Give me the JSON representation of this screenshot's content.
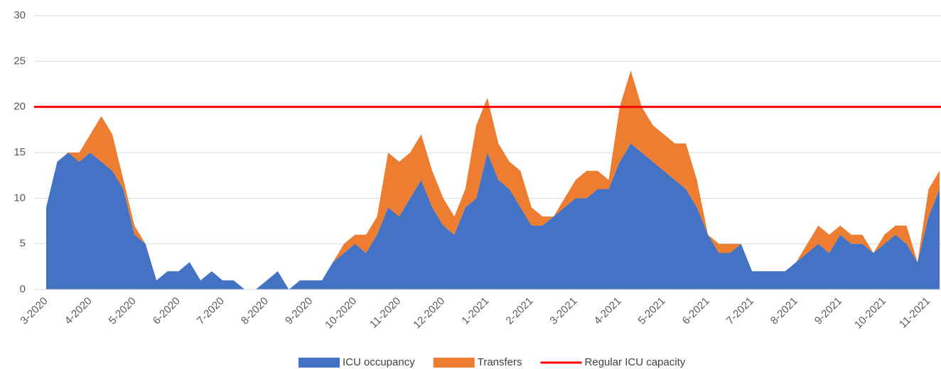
{
  "chart_data": {
    "type": "stacked-area",
    "categories": [
      "3-2020",
      null,
      null,
      null,
      "4-2020",
      null,
      null,
      null,
      "5-2020",
      null,
      null,
      null,
      "6-2020",
      null,
      null,
      null,
      "7-2020",
      null,
      null,
      null,
      "8-2020",
      null,
      null,
      null,
      "9-2020",
      null,
      null,
      null,
      "10-2020",
      null,
      null,
      null,
      "11-2020",
      null,
      null,
      null,
      "12-2020",
      null,
      null,
      null,
      "1-2021",
      null,
      null,
      null,
      "2-2021",
      null,
      null,
      null,
      "3-2021",
      null,
      null,
      null,
      "4-2021",
      null,
      null,
      null,
      "5-2021",
      null,
      null,
      null,
      "6-2021",
      null,
      null,
      null,
      "7-2021",
      null,
      null,
      null,
      "8-2021",
      null,
      null,
      null,
      "9-2021",
      null,
      null,
      null,
      "10-2021",
      null,
      null,
      null,
      "11-2021",
      null
    ],
    "series": [
      {
        "name": "ICU occupancy",
        "color": "#4472c4",
        "values": [
          9,
          14,
          15,
          14,
          15,
          14,
          13,
          11,
          6,
          5,
          1,
          2,
          2,
          3,
          1,
          2,
          1,
          1,
          0,
          0,
          1,
          2,
          0,
          1,
          1,
          1,
          3,
          4,
          5,
          4,
          6,
          9,
          8,
          10,
          12,
          9,
          7,
          6,
          9,
          10,
          15,
          12,
          11,
          9,
          7,
          7,
          8,
          9,
          10,
          10,
          11,
          11,
          14,
          16,
          15,
          14,
          13,
          12,
          11,
          9,
          6,
          4,
          4,
          5,
          2,
          2,
          2,
          2,
          3,
          4,
          5,
          4,
          6,
          5,
          5,
          4,
          5,
          6,
          5,
          3,
          8,
          11
        ]
      },
      {
        "name": "Transfers",
        "color": "#ed7d31",
        "values": [
          0,
          0,
          0,
          1,
          2,
          5,
          4,
          1,
          1,
          0,
          0,
          0,
          0,
          0,
          0,
          0,
          0,
          0,
          0,
          0,
          0,
          0,
          0,
          0,
          0,
          0,
          0,
          1,
          1,
          2,
          2,
          6,
          6,
          5,
          5,
          4,
          3,
          2,
          2,
          8,
          6,
          4,
          3,
          4,
          2,
          1,
          0,
          1,
          2,
          3,
          2,
          1,
          6,
          8,
          5,
          4,
          4,
          4,
          5,
          3,
          0,
          1,
          1,
          0,
          0,
          0,
          0,
          0,
          0,
          1,
          2,
          2,
          1,
          1,
          1,
          0,
          1,
          1,
          2,
          0,
          3,
          2
        ]
      }
    ],
    "reference_line": {
      "name": "Regular ICU capacity",
      "color": "#ff0000",
      "value": 20
    },
    "ylim": [
      0,
      30
    ],
    "yticks": [
      0,
      5,
      10,
      15,
      20,
      25,
      30
    ],
    "grid": true
  }
}
